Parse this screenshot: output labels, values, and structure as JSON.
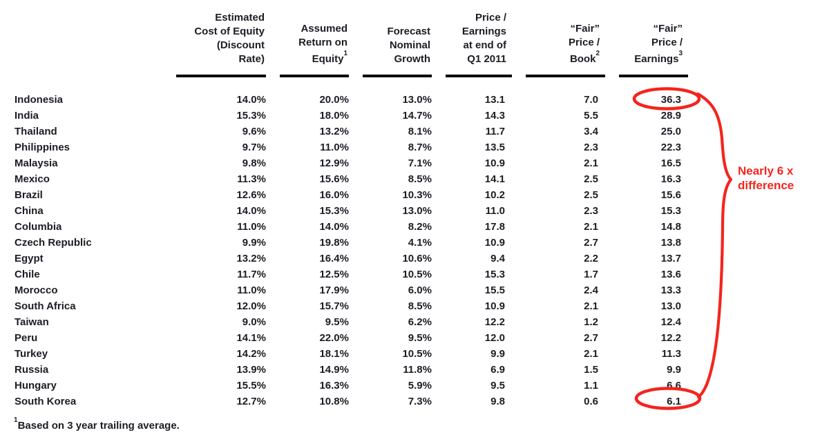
{
  "table": {
    "header": {
      "columns": [
        {
          "lines": [
            "Estimated",
            "Cost of Equity",
            "(Discount",
            "Rate)"
          ],
          "sup": ""
        },
        {
          "lines": [
            "Assumed",
            "Return on",
            "Equity"
          ],
          "sup": "1"
        },
        {
          "lines": [
            "Forecast",
            "Nominal",
            "Growth"
          ],
          "sup": ""
        },
        {
          "lines": [
            "Price /",
            "Earnings",
            "at end of",
            "Q1 2011"
          ],
          "sup": ""
        },
        {
          "lines": [
            "“Fair”",
            "Price /",
            "Book"
          ],
          "sup": "2"
        },
        {
          "lines": [
            "“Fair”",
            "Price /",
            "Earnings"
          ],
          "sup": "3"
        }
      ]
    }
  },
  "chart_data": {
    "type": "table",
    "categories": [
      "Indonesia",
      "India",
      "Thailand",
      "Philippines",
      "Malaysia",
      "Mexico",
      "Brazil",
      "China",
      "Columbia",
      "Czech Republic",
      "Egypt",
      "Chile",
      "Morocco",
      "South Africa",
      "Taiwan",
      "Peru",
      "Turkey",
      "Russia",
      "Hungary",
      "South Korea"
    ],
    "series": [
      {
        "name": "Estimated Cost of Equity (Discount Rate)",
        "values": [
          "14.0%",
          "15.3%",
          "9.6%",
          "9.7%",
          "9.8%",
          "11.3%",
          "12.6%",
          "14.0%",
          "11.0%",
          "9.9%",
          "13.2%",
          "11.7%",
          "11.0%",
          "12.0%",
          "9.0%",
          "14.1%",
          "14.2%",
          "13.9%",
          "15.5%",
          "12.7%"
        ]
      },
      {
        "name": "Assumed Return on Equity",
        "values": [
          "20.0%",
          "18.0%",
          "13.2%",
          "11.0%",
          "12.9%",
          "15.6%",
          "16.0%",
          "15.3%",
          "14.0%",
          "19.8%",
          "16.4%",
          "12.5%",
          "17.9%",
          "15.7%",
          "9.5%",
          "22.0%",
          "18.1%",
          "14.9%",
          "16.3%",
          "10.8%"
        ]
      },
      {
        "name": "Forecast Nominal Growth",
        "values": [
          "13.0%",
          "14.7%",
          "8.1%",
          "8.7%",
          "7.1%",
          "8.5%",
          "10.3%",
          "13.0%",
          "8.2%",
          "4.1%",
          "10.6%",
          "10.5%",
          "6.0%",
          "8.5%",
          "6.2%",
          "9.5%",
          "10.5%",
          "11.8%",
          "5.9%",
          "7.3%"
        ]
      },
      {
        "name": "Price / Earnings at end of Q1 2011",
        "values": [
          "13.1",
          "14.3",
          "11.7",
          "13.5",
          "10.9",
          "14.1",
          "10.2",
          "11.0",
          "17.8",
          "10.9",
          "9.4",
          "15.3",
          "15.5",
          "10.9",
          "12.2",
          "12.0",
          "9.9",
          "6.9",
          "9.5",
          "9.8"
        ]
      },
      {
        "name": "“Fair” Price / Book",
        "values": [
          "7.0",
          "5.5",
          "3.4",
          "2.3",
          "2.1",
          "2.5",
          "2.5",
          "2.3",
          "2.1",
          "2.7",
          "2.2",
          "1.7",
          "2.4",
          "2.1",
          "1.2",
          "2.7",
          "2.1",
          "1.5",
          "1.1",
          "0.6"
        ]
      },
      {
        "name": "“Fair” Price / Earnings",
        "values": [
          "36.3",
          "28.9",
          "25.0",
          "22.3",
          "16.5",
          "16.3",
          "15.6",
          "15.3",
          "14.8",
          "13.8",
          "13.7",
          "13.6",
          "13.3",
          "13.0",
          "12.4",
          "12.2",
          "11.3",
          "9.9",
          "6.6",
          "6.1"
        ]
      }
    ],
    "title": "",
    "legend": "off",
    "grid": "off",
    "annotations": [
      "Red ellipse around Indonesia fair P/E 36.3",
      "Red ellipse around South Korea fair P/E 6.1",
      "Nearly 6 x difference"
    ]
  },
  "annotation": {
    "line1": "Nearly 6 x",
    "line2": "difference",
    "color": "#f5241c",
    "circled_values": [
      "36.3",
      "6.1"
    ]
  },
  "footnote": {
    "sup": "1",
    "text": "Based on 3 year trailing average."
  }
}
